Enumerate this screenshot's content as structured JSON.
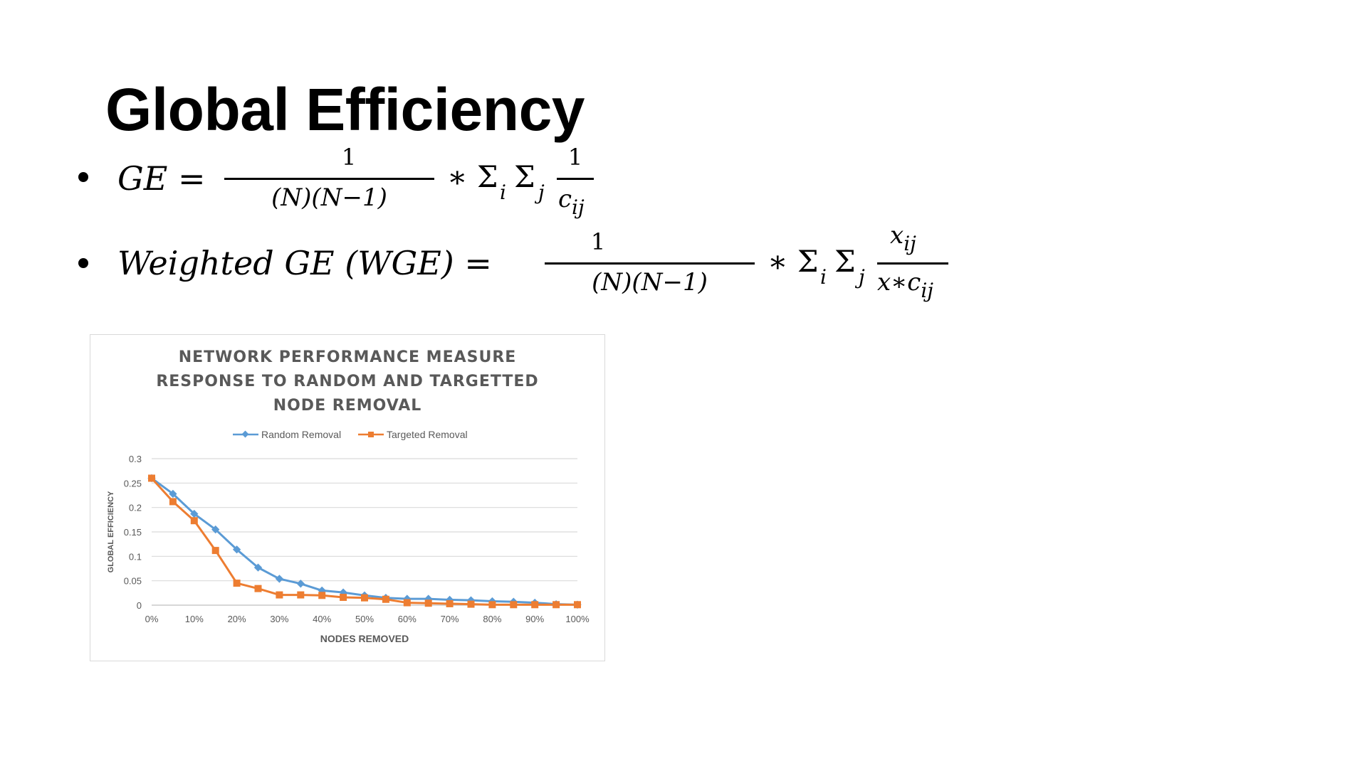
{
  "slide": {
    "title": "Global Efficiency"
  },
  "formulas": {
    "ge": {
      "lhs": "GE =",
      "numerator": "1",
      "denominator": "(N)(N−1)",
      "operator": "∗ Σ",
      "sub_i": "i",
      "sigma": "Σ",
      "sub_j": "j",
      "frac2_num": "1",
      "frac2_den": "c",
      "frac2_den_sub": "ij"
    },
    "wge": {
      "lhs": "Weighted GE (WGE) =",
      "numerator": "1",
      "denominator": "(N)(N−1)",
      "operator": "∗ Σ",
      "sub_i": "i",
      "sigma": "Σ",
      "sub_j": "j",
      "frac2_num": "x",
      "frac2_num_sub": "ij",
      "frac2_den": "x∗c",
      "frac2_den_sub": "ij"
    }
  },
  "chart_data": {
    "type": "line",
    "title": [
      "NETWORK PERFORMANCE MEASURE",
      "RESPONSE TO RANDOM AND TARGETTED",
      "NODE REMOVAL"
    ],
    "xlabel": "NODES REMOVED",
    "ylabel": "GLOBAL EFFICIENCY",
    "x": [
      0,
      5,
      10,
      15,
      20,
      25,
      30,
      35,
      40,
      45,
      50,
      55,
      60,
      65,
      70,
      75,
      80,
      85,
      90,
      95,
      100
    ],
    "x_ticks": [
      "0%",
      "10%",
      "20%",
      "30%",
      "40%",
      "50%",
      "60%",
      "70%",
      "80%",
      "90%",
      "100%"
    ],
    "x_tick_values": [
      0,
      10,
      20,
      30,
      40,
      50,
      60,
      70,
      80,
      90,
      100
    ],
    "y_ticks": [
      "0",
      "0.05",
      "0.1",
      "0.15",
      "0.2",
      "0.25",
      "0.3"
    ],
    "y_tick_values": [
      0,
      0.05,
      0.1,
      0.15,
      0.2,
      0.25,
      0.3
    ],
    "xlim": [
      0,
      100
    ],
    "ylim": [
      0,
      0.3
    ],
    "grid": "horizontal",
    "legend_position": "top",
    "series": [
      {
        "name": "Random Removal",
        "color": "#5b9bd5",
        "marker": "diamond",
        "values": [
          0.26,
          0.228,
          0.187,
          0.155,
          0.114,
          0.077,
          0.054,
          0.044,
          0.03,
          0.026,
          0.02,
          0.015,
          0.013,
          0.013,
          0.011,
          0.01,
          0.008,
          0.007,
          0.005,
          0.002,
          0.001
        ]
      },
      {
        "name": "Targeted Removal",
        "color": "#ed7d31",
        "marker": "square",
        "values": [
          0.26,
          0.212,
          0.173,
          0.112,
          0.045,
          0.034,
          0.021,
          0.021,
          0.02,
          0.016,
          0.015,
          0.012,
          0.005,
          0.004,
          0.003,
          0.002,
          0.001,
          0.001,
          0.001,
          0.001,
          0.001
        ]
      }
    ]
  }
}
